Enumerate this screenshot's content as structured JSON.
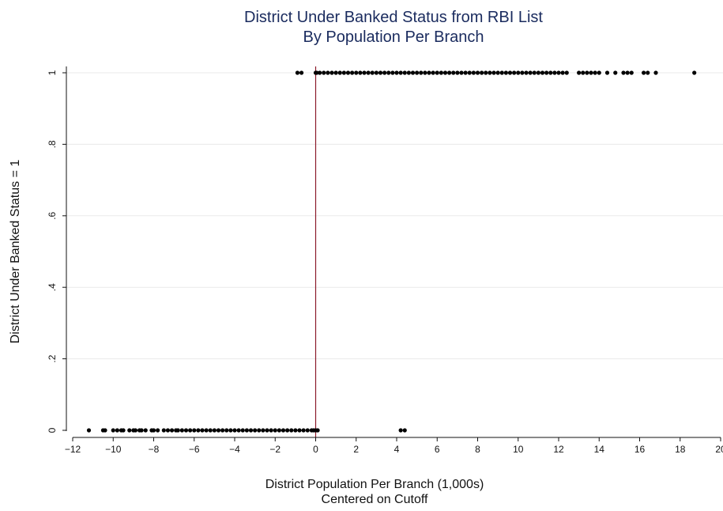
{
  "chart_data": {
    "type": "scatter",
    "title": [
      "District Under Banked Status from RBI List",
      "By Population Per Branch"
    ],
    "xlabel": [
      "District Population Per Branch (1,000s)",
      "Centered on Cutoff"
    ],
    "ylabel": "District Under Banked Status = 1",
    "xlim": [
      -12,
      20
    ],
    "ylim": [
      0,
      1
    ],
    "xticks": [
      -12,
      -10,
      -8,
      -6,
      -4,
      -2,
      0,
      2,
      4,
      6,
      8,
      10,
      12,
      14,
      16,
      18,
      20
    ],
    "xtick_labels": [
      "−12",
      "−10",
      "−8",
      "−6",
      "−4",
      "−2",
      "0",
      "2",
      "4",
      "6",
      "8",
      "10",
      "12",
      "14",
      "16",
      "18",
      "20"
    ],
    "yticks": [
      0,
      0.2,
      0.4,
      0.6,
      0.8,
      1
    ],
    "ytick_labels": [
      "0",
      ".2",
      ".4",
      ".6",
      ".8",
      "1"
    ],
    "grid": true,
    "cutoff_x": 0,
    "colors": {
      "title": "#1a2b5e",
      "points": "#000000",
      "cutoff_line": "#8b1a2b",
      "grid": "#eaeaea"
    },
    "series": [
      {
        "values_y": 0,
        "x": [
          -11.2,
          -10.5,
          -10.4,
          -10.0,
          -9.8,
          -9.6,
          -9.5,
          -9.2,
          -9.0,
          -8.9,
          -8.7,
          -8.6,
          -8.4,
          -8.1,
          -8.0,
          -7.8,
          -7.5,
          -7.3,
          -7.1,
          -6.9,
          -6.8,
          -6.6,
          -6.4,
          -6.2,
          -6.0,
          -5.8,
          -5.6,
          -5.4,
          -5.2,
          -5.0,
          -4.8,
          -4.6,
          -4.4,
          -4.2,
          -4.0,
          -3.8,
          -3.6,
          -3.4,
          -3.2,
          -3.0,
          -2.8,
          -2.6,
          -2.4,
          -2.2,
          -2.0,
          -1.8,
          -1.6,
          -1.4,
          -1.2,
          -1.0,
          -0.8,
          -0.6,
          -0.4,
          -0.2,
          -0.1,
          0.0,
          0.1,
          4.2,
          4.4
        ]
      },
      {
        "values_y": 1,
        "x": [
          -0.9,
          -0.7,
          0.0,
          0.05,
          0.2,
          0.4,
          0.6,
          0.8,
          1.0,
          1.2,
          1.4,
          1.6,
          1.8,
          2.0,
          2.2,
          2.4,
          2.6,
          2.8,
          3.0,
          3.2,
          3.4,
          3.6,
          3.8,
          4.0,
          4.2,
          4.4,
          4.6,
          4.8,
          5.0,
          5.2,
          5.4,
          5.6,
          5.8,
          6.0,
          6.2,
          6.4,
          6.6,
          6.8,
          7.0,
          7.2,
          7.4,
          7.6,
          7.8,
          8.0,
          8.2,
          8.4,
          8.6,
          8.8,
          9.0,
          9.2,
          9.4,
          9.6,
          9.8,
          10.0,
          10.2,
          10.4,
          10.6,
          10.8,
          11.0,
          11.2,
          11.4,
          11.6,
          11.8,
          12.0,
          12.2,
          12.4,
          13.0,
          13.2,
          13.4,
          13.6,
          13.8,
          14.0,
          14.4,
          14.8,
          15.2,
          15.4,
          15.6,
          16.2,
          16.4,
          16.8,
          18.7
        ]
      }
    ]
  }
}
